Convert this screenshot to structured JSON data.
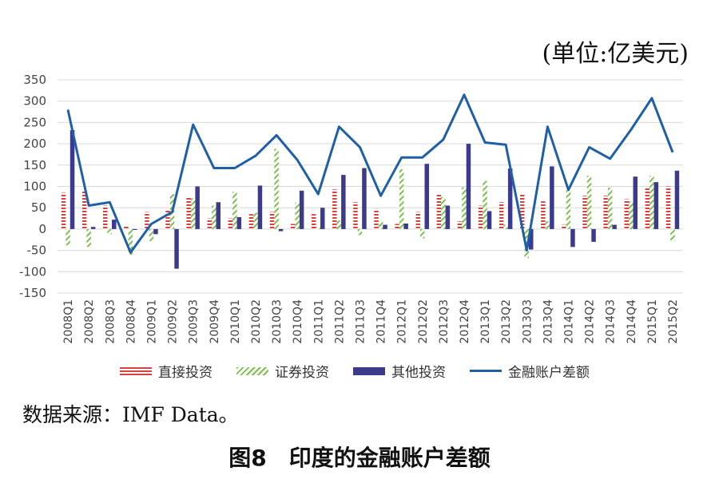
{
  "unit_label": "(单位:亿美元)",
  "source_label": "数据来源：IMF Data。",
  "caption": "图8　印度的金融账户差额",
  "chart_data": {
    "type": "bar",
    "categories": [
      "2008Q1",
      "2008Q2",
      "2008Q3",
      "2008Q4",
      "2009Q1",
      "2009Q2",
      "2009Q3",
      "2009Q4",
      "2010Q1",
      "2010Q2",
      "2010Q3",
      "2010Q4",
      "2011Q1",
      "2011Q2",
      "2011Q3",
      "2011Q4",
      "2012Q1",
      "2012Q2",
      "2012Q3",
      "2012Q4",
      "2013Q1",
      "2013Q2",
      "2013Q3",
      "2013Q4",
      "2014Q1",
      "2014Q2",
      "2014Q3",
      "2014Q4",
      "2015Q1",
      "2015Q2"
    ],
    "ylim": [
      -150,
      350
    ],
    "yticks": [
      350,
      300,
      250,
      200,
      150,
      100,
      50,
      0,
      -50,
      -100,
      -150
    ],
    "grid": true,
    "legend_position": "bottom",
    "series": [
      {
        "name": "直接投资",
        "kind": "bar",
        "color": "#d94040",
        "values": [
          85,
          90,
          55,
          8,
          40,
          45,
          75,
          25,
          25,
          35,
          40,
          12,
          35,
          93,
          63,
          47,
          12,
          40,
          82,
          18,
          55,
          63,
          82,
          65,
          10,
          78,
          78,
          70,
          98,
          100
        ]
      },
      {
        "name": "证券投资",
        "kind": "bar",
        "color": "#7cc04a",
        "values": [
          -38,
          -42,
          -12,
          -60,
          -28,
          82,
          72,
          55,
          88,
          38,
          188,
          62,
          5,
          20,
          -14,
          18,
          140,
          -22,
          75,
          98,
          113,
          10,
          -68,
          18,
          93,
          125,
          97,
          65,
          125,
          -28
        ]
      },
      {
        "name": "其他投资",
        "kind": "bar",
        "color": "#3b3a8c",
        "values": [
          232,
          5,
          22,
          -2,
          -12,
          -93,
          100,
          63,
          28,
          102,
          -5,
          90,
          50,
          127,
          143,
          10,
          13,
          153,
          55,
          200,
          42,
          142,
          -48,
          147,
          -42,
          -30,
          10,
          123,
          110,
          137
        ]
      },
      {
        "name": "金融账户差额",
        "kind": "line",
        "color": "#1f5fa8",
        "values": [
          280,
          55,
          63,
          -55,
          12,
          40,
          245,
          143,
          143,
          172,
          220,
          162,
          82,
          240,
          192,
          78,
          168,
          168,
          210,
          315,
          203,
          198,
          -50,
          240,
          92,
          192,
          165,
          233,
          307,
          180
        ]
      }
    ]
  }
}
